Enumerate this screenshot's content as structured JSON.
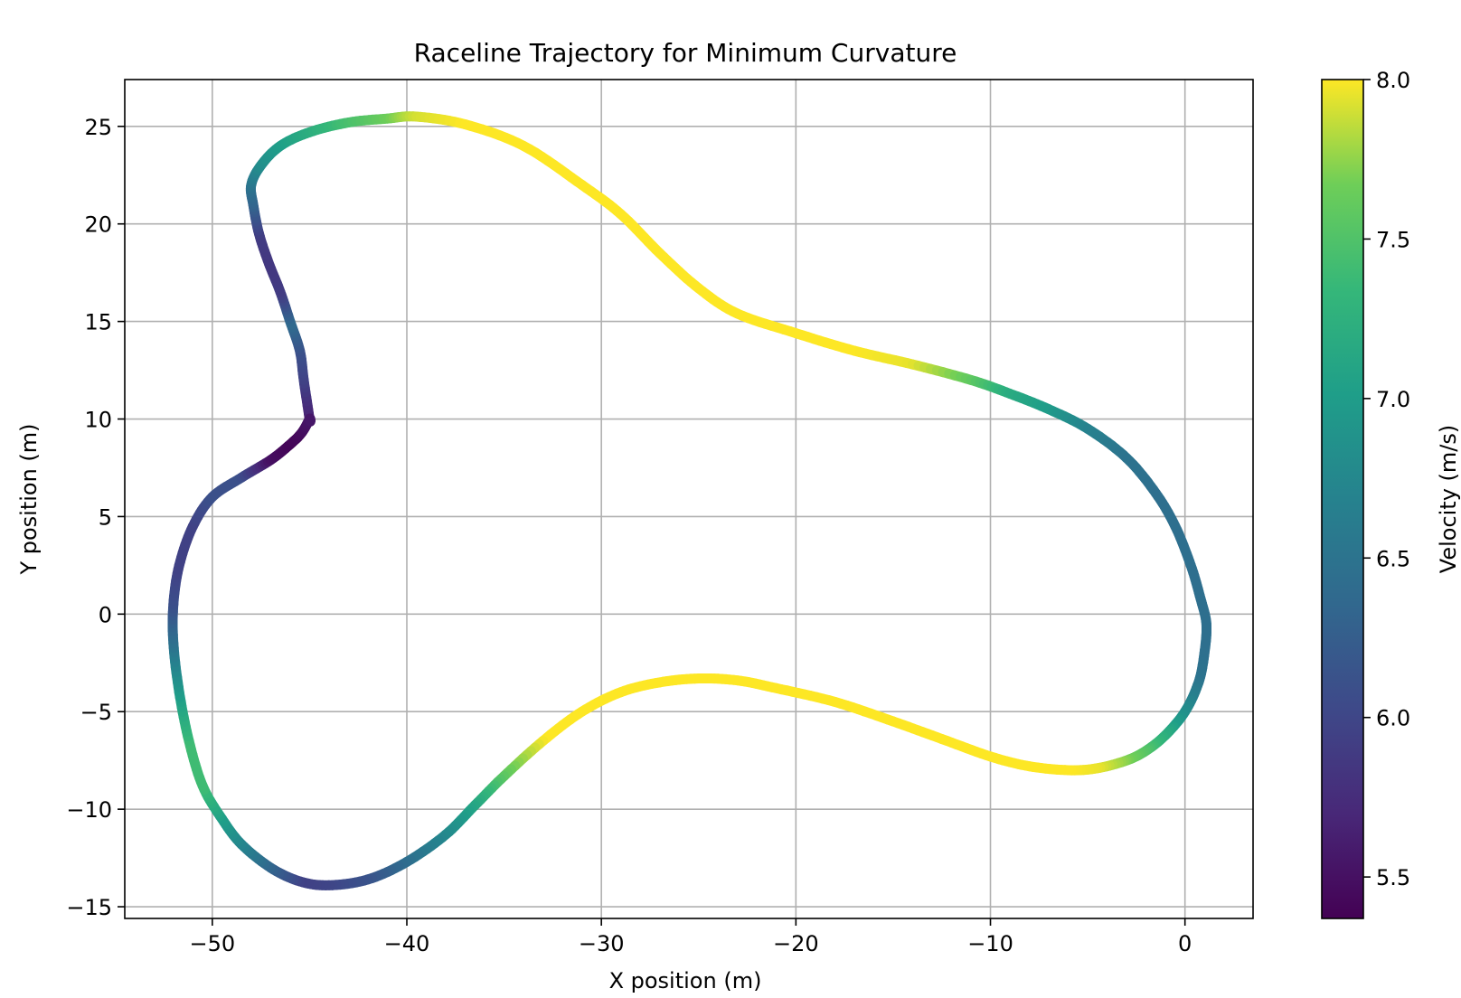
{
  "chart_data": {
    "type": "line",
    "title": "Raceline Trajectory for Minimum Curvature",
    "xlabel": "X position (m)",
    "ylabel": "Y position (m)",
    "xlim": [
      -54.5,
      3.5
    ],
    "ylim": [
      -15.6,
      27.4
    ],
    "xticks": [
      -50,
      -40,
      -30,
      -20,
      -10,
      0
    ],
    "xtick_labels": [
      "−50",
      "−40",
      "−30",
      "−20",
      "−10",
      "0"
    ],
    "yticks": [
      -15,
      -10,
      -5,
      0,
      5,
      10,
      15,
      20,
      25
    ],
    "ytick_labels": [
      "−15",
      "−10",
      "−5",
      "0",
      "5",
      "10",
      "15",
      "20",
      "25"
    ],
    "grid": true,
    "colormap": "viridis",
    "colorbar": {
      "label": "Velocity (m/s)",
      "range": [
        5.37,
        8.0
      ],
      "ticks": [
        5.5,
        6.0,
        6.5,
        7.0,
        7.5,
        8.0
      ],
      "tick_labels": [
        "5.5",
        "6.0",
        "6.5",
        "7.0",
        "7.5",
        "8.0"
      ]
    },
    "series": [
      {
        "x": [
          -45.0,
          -45.3,
          -45.5,
          -46.0,
          -46.5,
          -47.1,
          -47.6,
          -47.9,
          -48.0,
          -47.5,
          -46.5,
          -45.0,
          -43.0,
          -41.0,
          -39.5,
          -37.0,
          -34.0,
          -31.0,
          -29.0,
          -27.0,
          -25.0,
          -23.0,
          -20.0,
          -17.0,
          -14.0,
          -11.0,
          -9.0,
          -7.0,
          -5.0,
          -3.0,
          -1.5,
          -0.5,
          0.3,
          0.8,
          1.1,
          1.0,
          0.7,
          0.0,
          -1.0,
          -2.0,
          -3.0,
          -4.5,
          -6.0,
          -8.0,
          -10.0,
          -12.5,
          -15.0,
          -18.0,
          -21.0,
          -23.0,
          -25.0,
          -27.0,
          -29.0,
          -31.0,
          -33.0,
          -35.0,
          -36.5,
          -38.0,
          -40.0,
          -42.0,
          -44.0,
          -45.5,
          -47.0,
          -48.5,
          -49.5,
          -50.5,
          -51.2,
          -51.7,
          -52.0,
          -52.0,
          -51.7,
          -51.0,
          -50.0,
          -48.5,
          -47.0,
          -46.0,
          -45.4,
          -45.0
        ],
        "y": [
          10.0,
          12.0,
          13.5,
          15.0,
          16.5,
          18.0,
          19.5,
          21.0,
          22.0,
          23.0,
          24.0,
          24.7,
          25.2,
          25.4,
          25.5,
          25.1,
          24.0,
          22.0,
          20.5,
          18.5,
          16.7,
          15.4,
          14.4,
          13.5,
          12.8,
          12.0,
          11.3,
          10.5,
          9.5,
          8.0,
          6.2,
          4.5,
          2.5,
          0.8,
          -0.5,
          -2.0,
          -3.5,
          -5.0,
          -6.2,
          -7.0,
          -7.5,
          -7.9,
          -8.0,
          -7.8,
          -7.3,
          -6.4,
          -5.5,
          -4.5,
          -3.8,
          -3.4,
          -3.3,
          -3.5,
          -4.0,
          -5.0,
          -6.5,
          -8.3,
          -9.8,
          -11.3,
          -12.7,
          -13.6,
          -13.9,
          -13.7,
          -13.0,
          -11.8,
          -10.5,
          -8.8,
          -6.5,
          -4.0,
          -1.5,
          0.5,
          2.5,
          4.5,
          6.0,
          7.0,
          7.9,
          8.7,
          9.3,
          10.0
        ],
        "c": [
          5.55,
          5.95,
          6.1,
          6.4,
          5.9,
          5.85,
          5.9,
          6.3,
          6.5,
          6.8,
          7.0,
          7.2,
          7.45,
          7.65,
          7.9,
          8.0,
          8.0,
          8.0,
          8.0,
          8.0,
          8.0,
          8.0,
          8.0,
          8.0,
          7.95,
          7.6,
          7.2,
          7.0,
          6.7,
          6.5,
          6.45,
          6.45,
          6.45,
          6.45,
          6.45,
          6.45,
          6.5,
          6.8,
          7.2,
          7.5,
          7.7,
          7.95,
          8.0,
          8.0,
          8.0,
          8.0,
          8.0,
          8.0,
          8.0,
          8.0,
          8.0,
          8.0,
          8.0,
          8.0,
          8.0,
          7.6,
          7.15,
          6.8,
          6.45,
          6.15,
          6.0,
          5.95,
          6.3,
          6.7,
          7.0,
          7.4,
          7.4,
          7.0,
          6.5,
          6.1,
          5.95,
          5.95,
          6.1,
          6.1,
          5.5,
          5.4,
          5.45,
          5.55
        ]
      }
    ]
  }
}
